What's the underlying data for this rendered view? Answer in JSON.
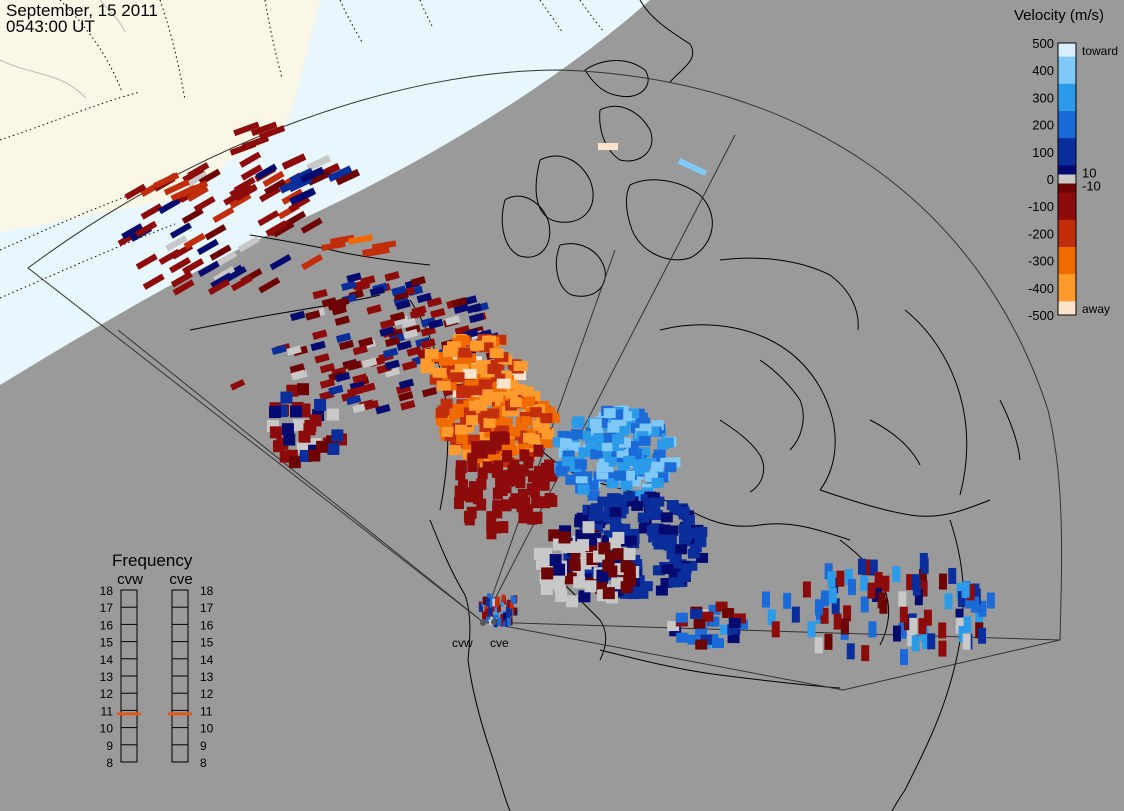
{
  "header": {
    "date": "September, 15 2011",
    "time": "0543:00 UT"
  },
  "colorbar": {
    "title": "Velocity (m/s)",
    "ticks": [
      "500",
      "400",
      "300",
      "200",
      "100",
      "10",
      "0",
      "-10",
      "-100",
      "-200",
      "-300",
      "-400",
      "-500"
    ],
    "end_top": "toward",
    "end_bottom": "away"
  },
  "frequency": {
    "title": "Frequency",
    "left_radar": "cvw",
    "right_radar": "cve",
    "scale_values": [
      "18",
      "17",
      "16",
      "15",
      "14",
      "13",
      "12",
      "11",
      "10",
      "9",
      "8"
    ],
    "cvw_mhz": 10.8,
    "cve_mhz": 10.8
  },
  "radars": [
    {
      "code": "cvw"
    },
    {
      "code": "cve"
    }
  ],
  "colors": {
    "background": "#9a9a9a",
    "daylight": "#e8f6fd",
    "land_sunlit": "#faf7e6",
    "ground_scatter": "#c8c8c8",
    "marker": "#e05a1c",
    "scale": [
      {
        "v": 500,
        "c": "#d8eefc"
      },
      {
        "v": 400,
        "c": "#7fc8f7"
      },
      {
        "v": 300,
        "c": "#2a9ae9"
      },
      {
        "v": 200,
        "c": "#1a6ad8"
      },
      {
        "v": 100,
        "c": "#0a2f9c"
      },
      {
        "v": 10,
        "c": "#050b6e"
      },
      {
        "v": -10,
        "c": "#6e0303"
      },
      {
        "v": -100,
        "c": "#8d0b0b"
      },
      {
        "v": -200,
        "c": "#c22d0c"
      },
      {
        "v": -300,
        "c": "#f06a00"
      },
      {
        "v": -400,
        "c": "#ff9a2c"
      },
      {
        "v": -500,
        "c": "#fde3cb"
      }
    ]
  }
}
